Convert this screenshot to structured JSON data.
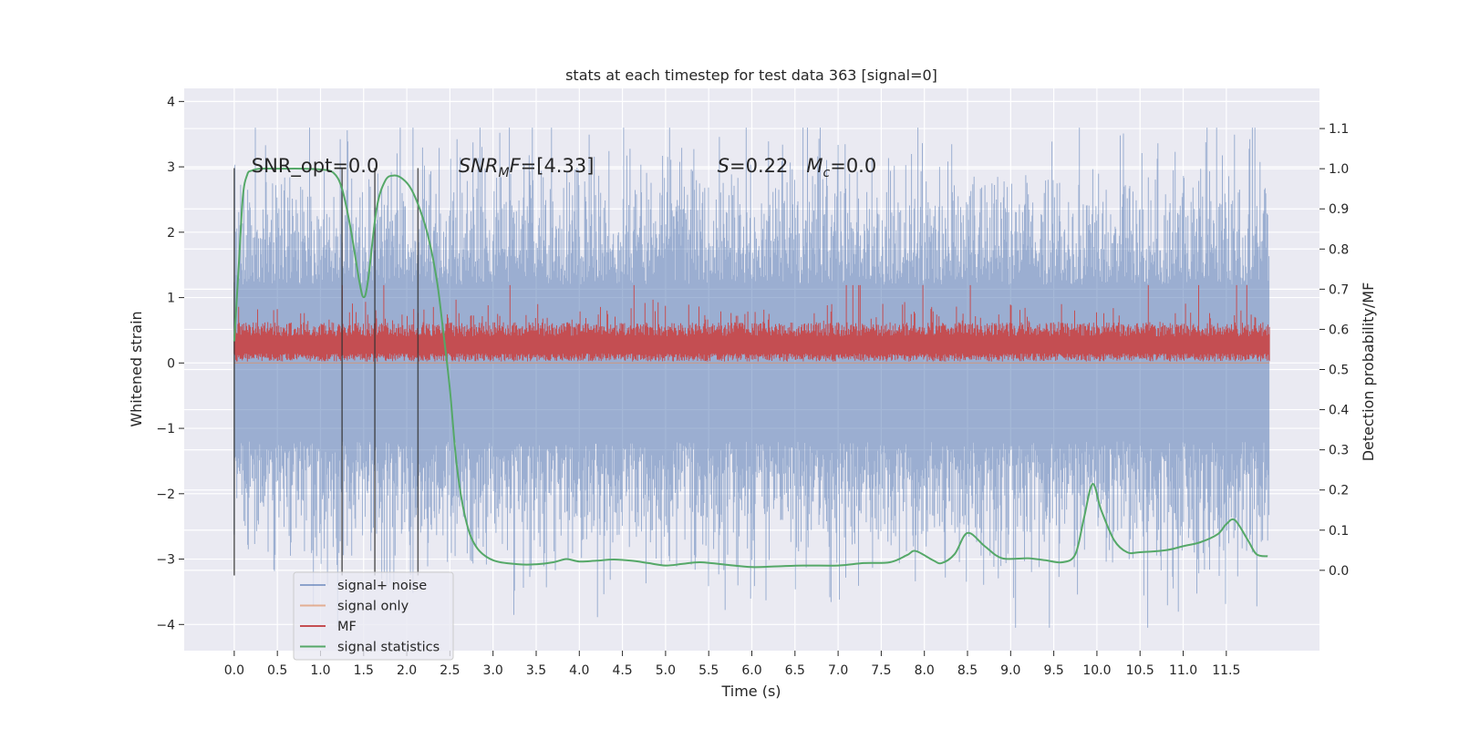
{
  "chart_data": {
    "type": "line",
    "title": "stats at each timestep for test data 363 [signal=0]",
    "xlabel": "Time (s)",
    "ylabel": "Whitened strain",
    "ylabel_right": "Detection probability/MF",
    "xlim": [
      -0.58,
      12.58
    ],
    "ylim": [
      -4.4,
      4.2
    ],
    "ylim_right": [
      -0.2,
      1.2
    ],
    "x_ticks": [
      0.0,
      0.5,
      1.0,
      1.5,
      2.0,
      2.5,
      3.0,
      3.5,
      4.0,
      4.5,
      5.0,
      5.5,
      6.0,
      6.5,
      7.0,
      7.5,
      8.0,
      8.5,
      9.0,
      9.5,
      10.0,
      10.5,
      11.0,
      11.5
    ],
    "x_tick_labels": [
      "0.0",
      "0.5",
      "1.0",
      "1.5",
      "2.0",
      "2.5",
      "3.0",
      "3.5",
      "4.0",
      "4.5",
      "5.0",
      "5.5",
      "6.0",
      "6.5",
      "7.0",
      "7.5",
      "8.0",
      "8.5",
      "9.0",
      "9.5",
      "10.0",
      "10.5",
      "11.0",
      "11.5"
    ],
    "y_ticks": [
      -4,
      -3,
      -2,
      -1,
      0,
      1,
      2,
      3,
      4
    ],
    "y_tick_labels": [
      "−4",
      "−3",
      "−2",
      "−1",
      "0",
      "1",
      "2",
      "3",
      "4"
    ],
    "y_right_ticks": [
      0.0,
      0.1,
      0.2,
      0.3,
      0.4,
      0.5,
      0.6,
      0.7,
      0.8,
      0.9,
      1.0,
      1.1
    ],
    "y_right_tick_labels": [
      "0.0",
      "0.1",
      "0.2",
      "0.3",
      "0.4",
      "0.5",
      "0.6",
      "0.7",
      "0.8",
      "0.9",
      "1.0",
      "1.1"
    ],
    "grid": true,
    "legend_placement": "lower-left",
    "annotations": [
      {
        "text": "SNR_opt=0.0",
        "x": 0.2,
        "y": 3.0
      },
      {
        "text": "SNR_MF=[4.33]",
        "x": 2.6,
        "y": 3.0
      },
      {
        "text": "S=0.22   M_c=0.0",
        "x": 5.6,
        "y": 3.0
      }
    ],
    "vlines": {
      "x": [
        0.0,
        1.25,
        1.63,
        2.13
      ],
      "ymin": -3.25,
      "ymax": 2.98,
      "color": "#333333"
    },
    "series": [
      {
        "name": "signal+ noise",
        "color": "#4c72b0",
        "axis": "left",
        "x_range": [
          0.0,
          12.0
        ],
        "envelope": {
          "typical": 1.6,
          "peaks_upper": 3.6,
          "peaks_lower": -4.05
        }
      },
      {
        "name": "signal only",
        "color": "#dd8452",
        "axis": "left",
        "x": [
          0.0,
          12.0
        ],
        "y": [
          0.0,
          0.0
        ]
      },
      {
        "name": "MF",
        "color": "#c44e52",
        "axis": "right",
        "x_range": [
          0.0,
          12.0
        ],
        "band": [
          0.53,
          0.6
        ],
        "peaks": 0.71
      },
      {
        "name": "signal statistics",
        "color": "#55a868",
        "axis": "right",
        "x": [
          0.0,
          0.05,
          0.1,
          0.15,
          0.2,
          0.3,
          0.5,
          0.8,
          1.0,
          1.15,
          1.25,
          1.35,
          1.45,
          1.5,
          1.55,
          1.65,
          1.75,
          1.85,
          1.95,
          2.05,
          2.15,
          2.25,
          2.35,
          2.42,
          2.5,
          2.58,
          2.68,
          2.8,
          3.0,
          3.3,
          3.5,
          3.7,
          3.85,
          4.0,
          4.2,
          4.4,
          4.6,
          4.8,
          5.0,
          5.2,
          5.4,
          5.7,
          6.0,
          6.3,
          6.6,
          7.0,
          7.3,
          7.6,
          7.8,
          7.9,
          8.1,
          8.2,
          8.35,
          8.5,
          8.7,
          8.9,
          9.2,
          9.4,
          9.6,
          9.75,
          9.85,
          9.95,
          10.05,
          10.2,
          10.35,
          10.5,
          10.8,
          11.0,
          11.2,
          11.4,
          11.5,
          11.6,
          11.75,
          11.85,
          11.98
        ],
        "y": [
          0.57,
          0.75,
          0.93,
          0.985,
          0.995,
          1.0,
          1.0,
          1.0,
          0.998,
          0.99,
          0.95,
          0.85,
          0.72,
          0.68,
          0.72,
          0.9,
          0.97,
          0.983,
          0.975,
          0.95,
          0.9,
          0.83,
          0.72,
          0.6,
          0.45,
          0.26,
          0.13,
          0.06,
          0.025,
          0.015,
          0.015,
          0.02,
          0.028,
          0.022,
          0.024,
          0.027,
          0.024,
          0.018,
          0.012,
          0.016,
          0.02,
          0.014,
          0.008,
          0.01,
          0.012,
          0.012,
          0.018,
          0.02,
          0.038,
          0.048,
          0.025,
          0.018,
          0.04,
          0.093,
          0.06,
          0.03,
          0.03,
          0.025,
          0.02,
          0.04,
          0.13,
          0.215,
          0.15,
          0.075,
          0.045,
          0.045,
          0.05,
          0.06,
          0.07,
          0.09,
          0.115,
          0.125,
          0.075,
          0.04,
          0.035
        ]
      }
    ]
  }
}
